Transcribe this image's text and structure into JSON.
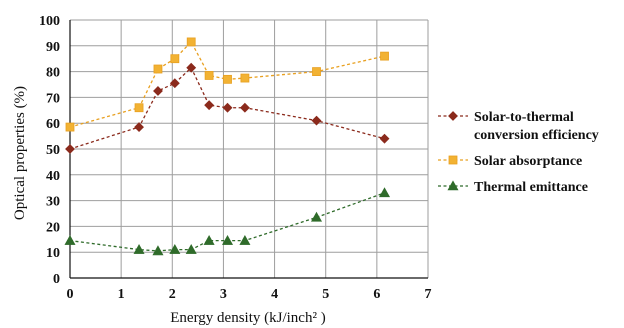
{
  "chart_data": {
    "type": "line",
    "xlabel": "Energy density (kJ/inch² )",
    "ylabel": "Optical properties (%)",
    "xlim": [
      0,
      7
    ],
    "ylim": [
      0,
      100
    ],
    "xticks": [
      "0",
      "1",
      "2",
      "3",
      "4",
      "5",
      "6",
      "7"
    ],
    "yticks": [
      "0",
      "10",
      "20",
      "30",
      "40",
      "50",
      "60",
      "70",
      "80",
      "90",
      "100"
    ],
    "grid": "major",
    "legend_position": "right",
    "series": [
      {
        "name": "Solar-to-thermal conversion efficiency",
        "name_lines": [
          "Solar-to-thermal",
          "conversion efficiency"
        ],
        "marker": "diamond",
        "color": "#8b2a1c",
        "x": [
          0,
          1.35,
          1.72,
          2.05,
          2.37,
          2.72,
          3.08,
          3.42,
          4.82,
          6.15
        ],
        "y": [
          50,
          58.5,
          72.5,
          75.5,
          81.5,
          67,
          66,
          66,
          61,
          54
        ]
      },
      {
        "name": "Solar absorptance",
        "name_lines": [
          "Solar absorptance"
        ],
        "marker": "square",
        "color": "#e8a020",
        "x": [
          0,
          1.35,
          1.72,
          2.05,
          2.37,
          2.72,
          3.08,
          3.42,
          4.82,
          6.15
        ],
        "y": [
          58.5,
          66,
          81,
          85,
          91.5,
          78.5,
          77,
          77.5,
          80,
          86
        ]
      },
      {
        "name": "Thermal emittance",
        "name_lines": [
          "Thermal emittance"
        ],
        "marker": "triangle",
        "color": "#2f6b2a",
        "x": [
          0,
          1.35,
          1.72,
          2.05,
          2.37,
          2.72,
          3.08,
          3.42,
          4.82,
          6.15
        ],
        "y": [
          14.5,
          11,
          10.5,
          11,
          11,
          14.5,
          14.5,
          14.5,
          23.5,
          33
        ]
      }
    ]
  }
}
